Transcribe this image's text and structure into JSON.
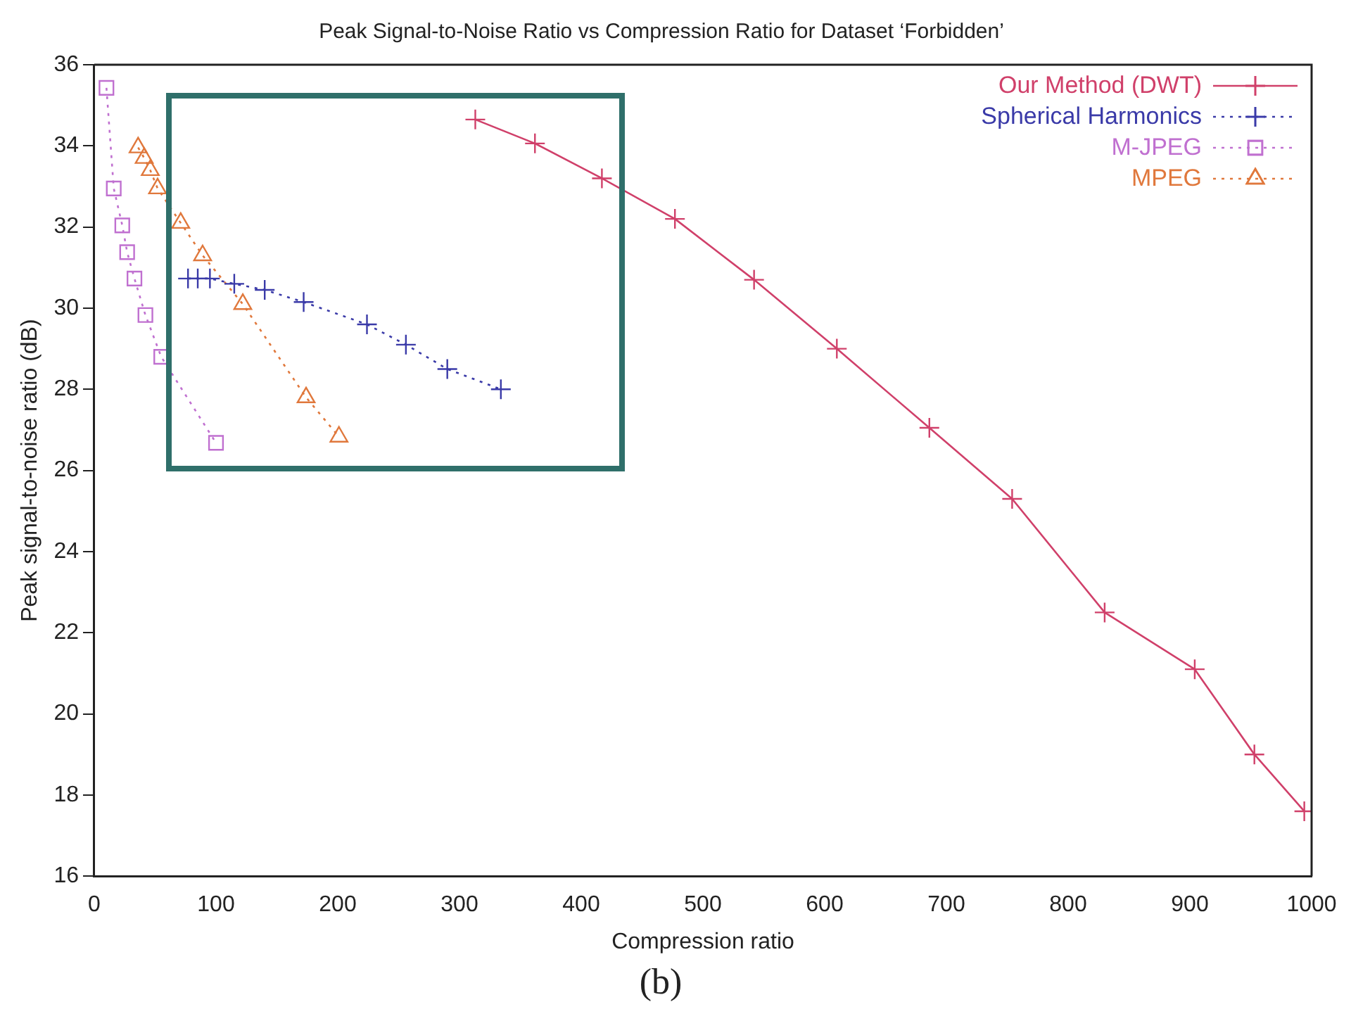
{
  "chart_data": {
    "type": "line",
    "title": "Peak Signal-to-Noise Ratio vs Compression Ratio for Dataset ‘Forbidden’",
    "xlabel": "Compression ratio",
    "ylabel": "Peak signal-to-noise ratio (dB)",
    "annotations": [
      "(b)"
    ],
    "xlim": [
      0,
      1000
    ],
    "xticks": [
      0,
      100,
      200,
      300,
      400,
      500,
      600,
      700,
      800,
      900,
      1000
    ],
    "ylim": [
      16,
      36
    ],
    "yticks": [
      16,
      18,
      20,
      22,
      24,
      26,
      28,
      30,
      32,
      34,
      36
    ],
    "grid": false,
    "legend": "top right",
    "series": [
      {
        "name": "Our Method (DWT)",
        "color": "#d0406a",
        "marker": "cross",
        "line_style": "solid",
        "x": [
          313,
          362,
          417,
          477,
          542,
          610,
          686,
          754,
          830,
          904,
          953,
          994
        ],
        "values": [
          34.65,
          34.06,
          33.2,
          32.2,
          30.7,
          29.0,
          27.05,
          25.3,
          22.5,
          21.1,
          19.0,
          17.6
        ]
      },
      {
        "name": "Spherical Harmonics",
        "color": "#3a3aa8",
        "marker": "cross",
        "line_style": "dotted",
        "x": [
          77,
          85,
          95,
          115,
          140,
          172,
          224,
          256,
          290,
          334
        ],
        "values": [
          30.73,
          30.73,
          30.73,
          30.6,
          30.45,
          30.15,
          29.6,
          29.1,
          28.5,
          28.0
        ]
      },
      {
        "name": "M-JPEG",
        "color": "#c070d0",
        "marker": "square",
        "line_style": "dotted",
        "x": [
          10,
          16,
          23,
          27,
          33,
          42,
          55,
          100
        ],
        "values": [
          35.43,
          32.95,
          32.04,
          31.38,
          30.73,
          29.83,
          28.8,
          26.68
        ]
      },
      {
        "name": "MPEG",
        "color": "#e0783c",
        "marker": "triangle",
        "line_style": "dotted",
        "x": [
          36,
          41,
          46,
          52,
          71,
          89,
          122,
          174,
          201
        ],
        "values": [
          33.96,
          33.7,
          33.4,
          32.95,
          32.1,
          31.3,
          30.1,
          27.8,
          26.83
        ]
      }
    ]
  }
}
